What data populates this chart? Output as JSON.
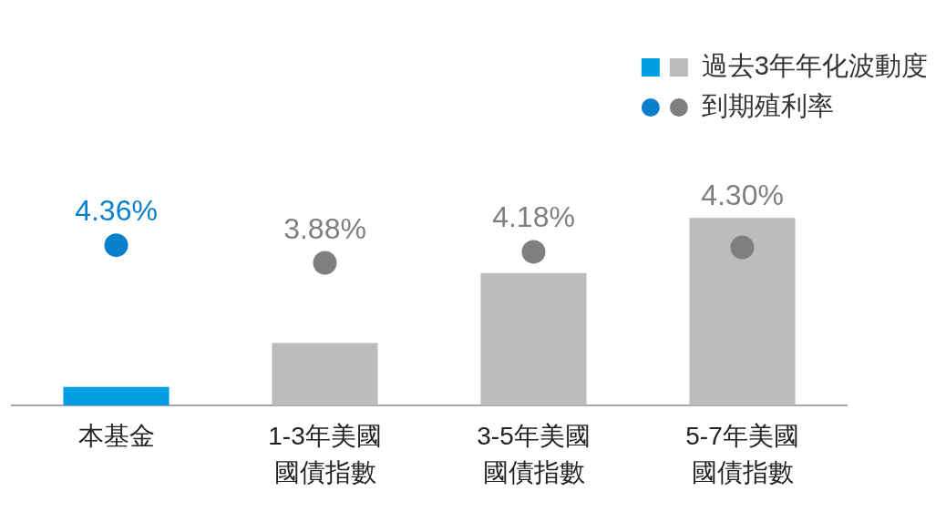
{
  "chart_data": {
    "type": "bar",
    "categories": [
      "本基金",
      "1-3年美國國債指數",
      "3-5年美國國債指數",
      "5-7年美國國債指數"
    ],
    "series": [
      {
        "name": "過去3年年化波動度",
        "colors": [
          "#009fe3",
          "#bcbcbc",
          "#bcbcbc",
          "#bcbcbc"
        ],
        "values": [
          0.5,
          1.7,
          3.6,
          5.1
        ]
      },
      {
        "name": "到期殖利率",
        "type": "scatter",
        "colors": [
          "#0a7fcc",
          "#7f7f7f",
          "#7f7f7f",
          "#7f7f7f"
        ],
        "x": [
          "本基金",
          "1-3年美國國債指數",
          "3-5年美國國債指數",
          "5-7年美國國債指數"
        ],
        "values": [
          4.36,
          3.88,
          4.18,
          4.3
        ],
        "value_labels": [
          "4.36%",
          "3.88%",
          "4.18%",
          "4.30%"
        ]
      }
    ],
    "tick_labels": "x",
    "grid": false,
    "legend": "top right",
    "marker": "circle"
  }
}
